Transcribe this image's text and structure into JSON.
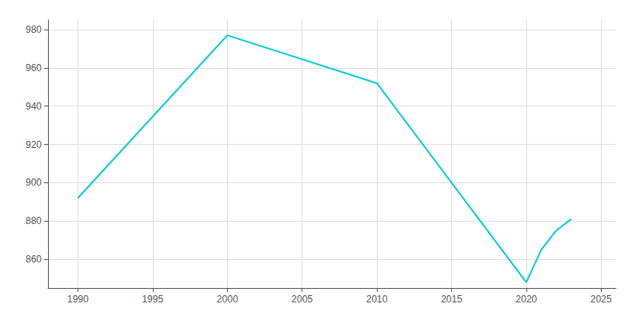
{
  "chart_data": {
    "type": "line",
    "x": [
      1990,
      2000,
      2010,
      2020,
      2021,
      2022,
      2023
    ],
    "values": [
      892,
      977,
      952,
      848,
      865,
      875,
      881
    ],
    "color": "#00CED1",
    "xlim": [
      1988,
      2026
    ],
    "ylim": [
      845,
      985
    ],
    "xticks": [
      1990,
      1995,
      2000,
      2005,
      2010,
      2015,
      2020,
      2025
    ],
    "yticks": [
      860,
      880,
      900,
      920,
      940,
      960,
      980
    ],
    "grid": true
  }
}
